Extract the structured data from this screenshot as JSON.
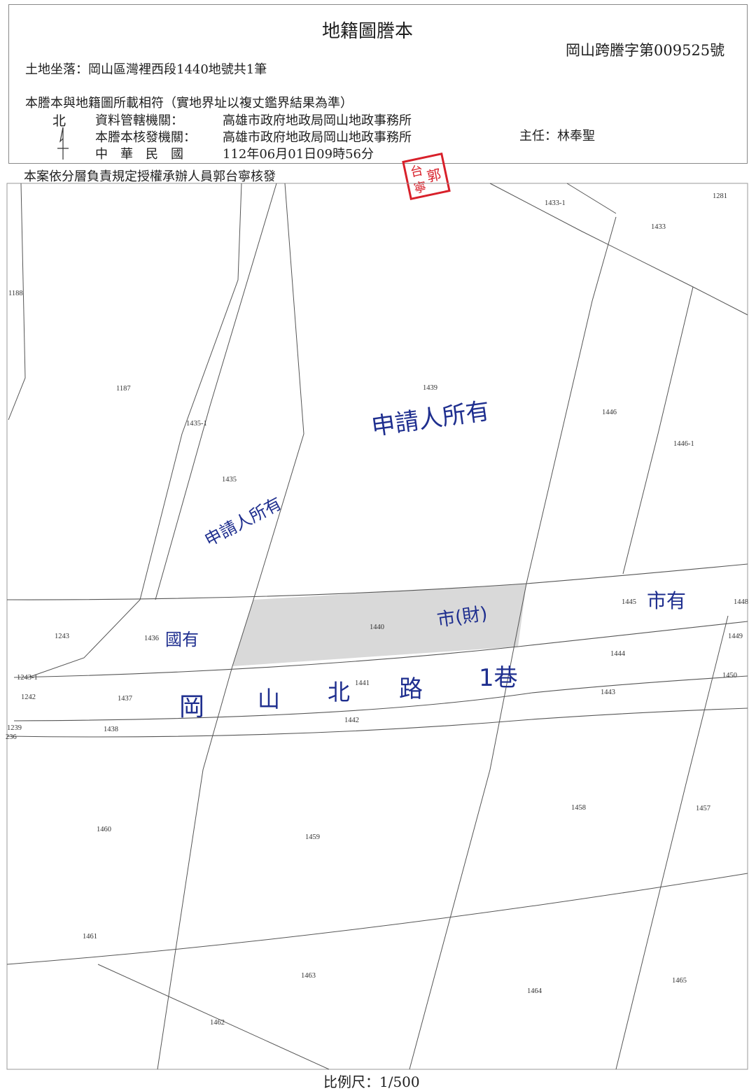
{
  "header": {
    "title": "地籍圖謄本",
    "document_no": "岡山跨謄字第009525號",
    "location": "土地坐落：岡山區灣裡西段1440地號共1筆",
    "note": "本謄本與地籍圖所載相符（實地界址以複丈鑑界結果為準）",
    "north_label": "北",
    "rows": [
      {
        "label": "資料管轄機關：",
        "value": "高雄市政府地政局岡山地政事務所"
      },
      {
        "label": "本謄本核發機關：",
        "value": "高雄市政府地政局岡山地政事務所"
      },
      {
        "label": "中　華　民　國",
        "value": "112年06月01日09時56分"
      }
    ],
    "chief": "主任：林奉聖",
    "authorization": "本案依分層負責規定授權承辦人員郭台寧核發"
  },
  "stamp_text": "台寧郭",
  "map": {
    "highlight_color": "#d9d9d9",
    "parcel_labels": [
      "1433-1",
      "1281",
      "1433",
      "1188",
      "1187",
      "1439",
      "1446",
      "1446-1",
      "1435-1",
      "1435",
      "1445",
      "1448",
      "1243",
      "1436",
      "1440",
      "1449",
      "1444",
      "1243-1",
      "1242",
      "1437",
      "1441",
      "1450",
      "1443",
      "1239",
      "236",
      "1438",
      "1442",
      "1458",
      "1457",
      "1460",
      "1459",
      "1461",
      "1463",
      "1464",
      "1465",
      "1462"
    ],
    "handwritten": {
      "owner_applicant_1": "申請人所有",
      "owner_applicant_2": "申請人所有",
      "state_owned": "國有",
      "city_owned": "市有",
      "city_finance": "市(財)",
      "road_1": "岡",
      "road_2": "山",
      "road_3": "北",
      "road_4": "路",
      "road_5": "1巷"
    }
  },
  "scale": "比例尺：1/500"
}
